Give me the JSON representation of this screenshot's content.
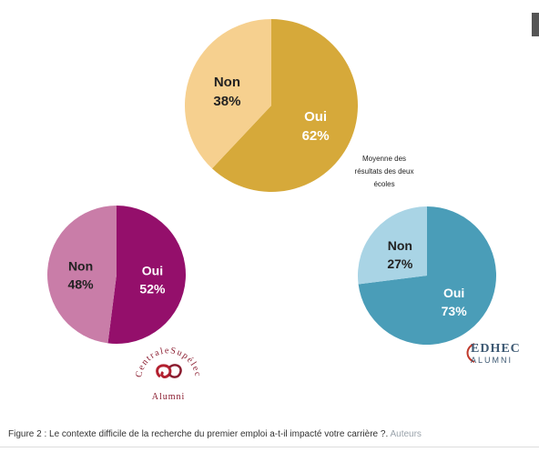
{
  "chart_data": [
    {
      "type": "pie",
      "title": "",
      "slices": [
        {
          "label": "Oui",
          "value": 62,
          "display": "62%",
          "color": "#d6a93a"
        },
        {
          "label": "Non",
          "value": 38,
          "display": "38%",
          "color": "#f6d08f"
        }
      ],
      "annotation": [
        "Moyenne des",
        "résultats des deux",
        "écoles"
      ]
    },
    {
      "type": "pie",
      "title": "",
      "slices": [
        {
          "label": "Oui",
          "value": 52,
          "display": "52%",
          "color": "#940f6b"
        },
        {
          "label": "Non",
          "value": 48,
          "display": "48%",
          "color": "#c97da8"
        }
      ]
    },
    {
      "type": "pie",
      "title": "",
      "slices": [
        {
          "label": "Oui",
          "value": 73,
          "display": "73%",
          "color": "#4a9db8"
        },
        {
          "label": "Non",
          "value": 27,
          "display": "27%",
          "color": "#a9d4e5"
        }
      ]
    }
  ],
  "logos": {
    "centrale": {
      "arc_text": "CentraleSupélec",
      "bottom_text": "Alumni"
    },
    "edhec": {
      "top_text": "EDHEC",
      "bottom_text": "ALUMNI"
    }
  },
  "caption": {
    "text": "Figure 2 : Le contexte difficile de la recherche du premier emploi a-t-il impacté votre carrière ?.",
    "credit": "Auteurs"
  }
}
